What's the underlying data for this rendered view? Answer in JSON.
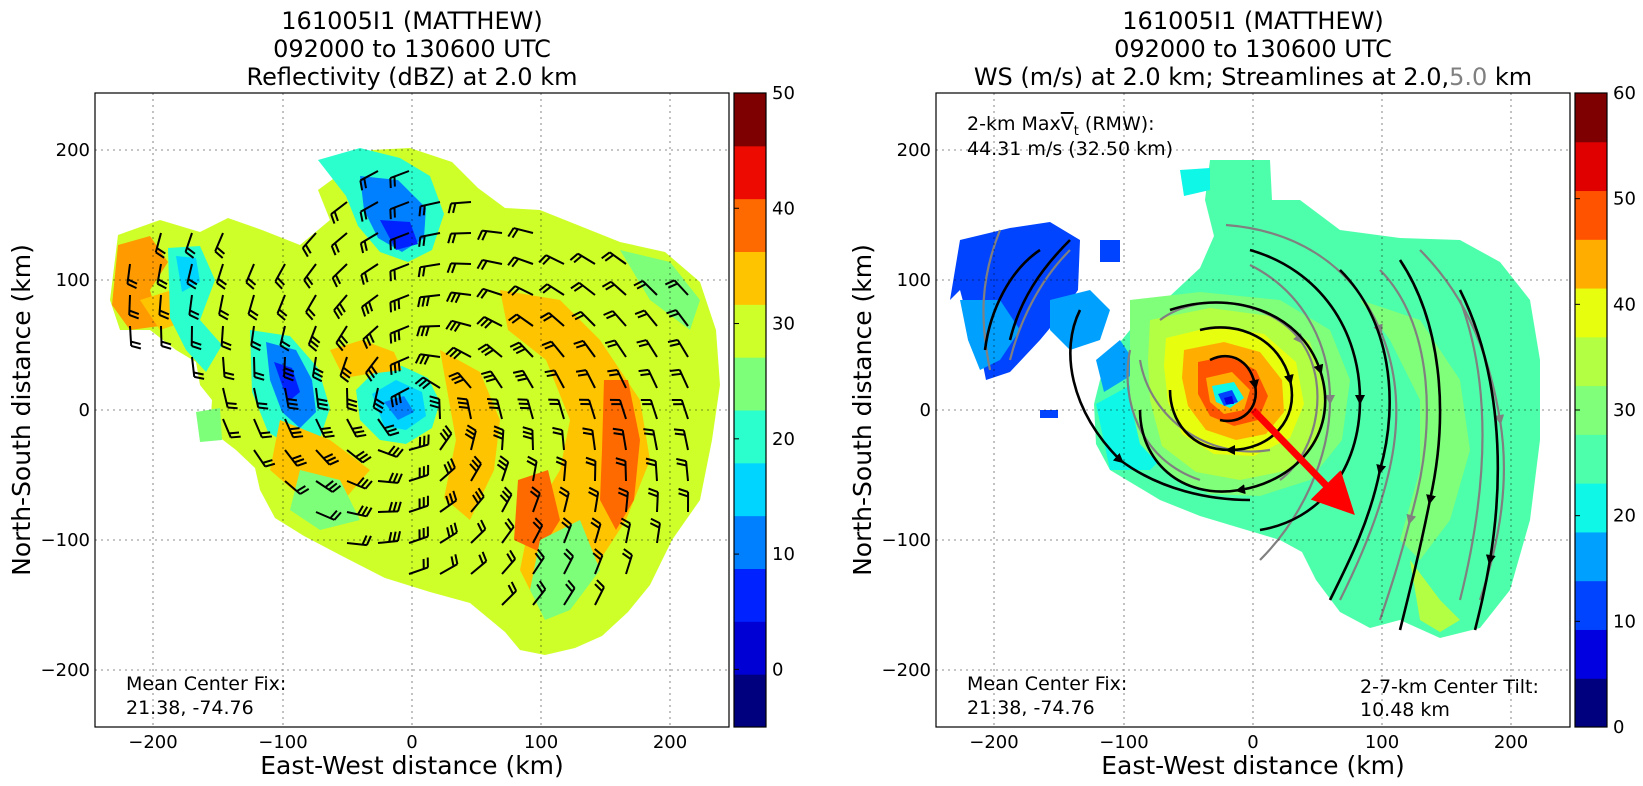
{
  "chart_data": [
    {
      "type": "heatmap",
      "title_lines": [
        "161005I1 (MATTHEW)",
        "092000 to 130600 UTC",
        "Reflectivity (dBZ) at 2.0 km"
      ],
      "xlabel": "East-West distance (km)",
      "ylabel": "North-South distance (km)",
      "xlim": [
        -245,
        245
      ],
      "ylim": [
        -245,
        245
      ],
      "xticks": [
        -200,
        -100,
        0,
        100,
        200
      ],
      "yticks": [
        -200,
        -100,
        0,
        100,
        200
      ],
      "grid": true,
      "colorbar": {
        "min": -5,
        "max": 50,
        "step": 5,
        "ticks": [
          0,
          10,
          20,
          30,
          40,
          50
        ]
      },
      "overlay": "wind barbs",
      "annotation": {
        "label": "Mean Center Fix:",
        "value": "21.38, -74.76"
      }
    },
    {
      "type": "heatmap",
      "title_lines": [
        "161005I1 (MATTHEW)",
        "092000 to 130600 UTC"
      ],
      "title_line3": {
        "prefix": "WS (m/s) at 2.0 km; Streamlines at 2.0,",
        "grey": "5.0",
        "suffix": " km"
      },
      "xlabel": "East-West distance (km)",
      "ylabel": "North-South distance (km)",
      "xlim": [
        -245,
        245
      ],
      "ylim": [
        -245,
        245
      ],
      "xticks": [
        -200,
        -100,
        0,
        100,
        200
      ],
      "yticks": [
        -200,
        -100,
        0,
        100,
        200
      ],
      "grid": true,
      "colorbar": {
        "min": 0,
        "max": 60,
        "step": 5,
        "ticks": [
          0,
          10,
          20,
          30,
          40,
          50,
          60
        ]
      },
      "overlay": "streamlines",
      "max_vt": {
        "label_pre": "2-km Max",
        "label_v": "V",
        "label_sub": "t",
        "label_post": " (RMW):",
        "value": "44.31 m/s (32.50 km)"
      },
      "annotation": {
        "label": "Mean Center Fix:",
        "value": "21.38, -74.76"
      },
      "tilt": {
        "label": "2-7-km Center Tilt:",
        "value": "10.48 km",
        "color": "#ff0000",
        "vector": {
          "from": [
            0,
            0
          ],
          "to": [
            80,
            -80
          ]
        }
      }
    }
  ],
  "colors": {
    "jet_11": [
      "#00007f",
      "#0000d5",
      "#0022ff",
      "#0080ff",
      "#00d5ff",
      "#2bffce",
      "#7dff7a",
      "#ceff29",
      "#ffc400",
      "#ff6a00",
      "#ed0a00",
      "#7f0000"
    ],
    "jet_12": [
      "#00007f",
      "#0000e0",
      "#0044ff",
      "#00a0ff",
      "#0ff8e7",
      "#4dffaa",
      "#7fff7a",
      "#b3ff43",
      "#e7ff0f",
      "#ffae00",
      "#ff5300",
      "#e00000",
      "#7f0000"
    ],
    "stream_2km": "#000000",
    "stream_5km": "#808080",
    "tilt": "#ff0000"
  }
}
